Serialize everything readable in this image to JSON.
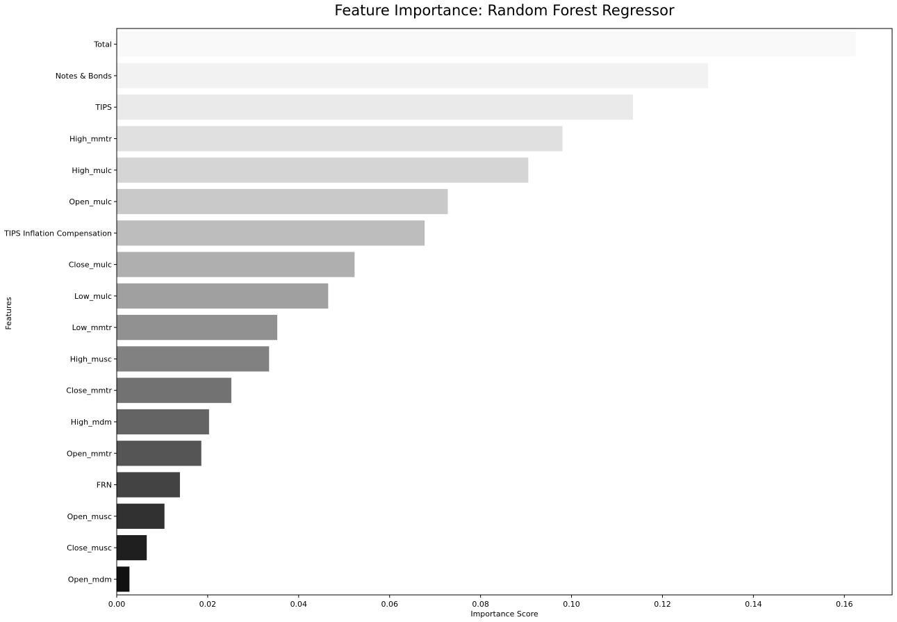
{
  "chart_data": {
    "type": "bar",
    "orientation": "horizontal",
    "title": "Feature Importance: Random Forest Regressor",
    "xlabel": "Importance Score",
    "ylabel": "Features",
    "xlim": [
      0,
      0.1705
    ],
    "xticks": [
      "0.00",
      "0.02",
      "0.04",
      "0.06",
      "0.08",
      "0.10",
      "0.12",
      "0.14",
      "0.16"
    ],
    "grid": false,
    "legend": "none",
    "categories": [
      "Total",
      "Notes & Bonds",
      "TIPS",
      "High_mmtr",
      "High_mulc",
      "Open_mulc",
      "TIPS Inflation Compensation",
      "Close_mulc",
      "Low_mulc",
      "Low_mmtr",
      "High_musc",
      "Close_mmtr",
      "High_mdm",
      "Open_mmtr",
      "FRN",
      "Open_musc",
      "Close_musc",
      "Open_mdm"
    ],
    "values": [
      0.1625,
      0.13,
      0.1135,
      0.098,
      0.0905,
      0.0728,
      0.0677,
      0.0523,
      0.0465,
      0.0353,
      0.0335,
      0.0252,
      0.0203,
      0.0186,
      0.0139,
      0.0105,
      0.0066,
      0.0028
    ],
    "colors": [
      "#f9f9f9",
      "#f2f2f2",
      "#eaeaea",
      "#e0e0e0",
      "#d5d5d5",
      "#c9c9c9",
      "#bdbdbd",
      "#afafaf",
      "#a0a0a0",
      "#919191",
      "#818181",
      "#727272",
      "#646464",
      "#555555",
      "#434343",
      "#313131",
      "#1f1f1f",
      "#111111"
    ]
  }
}
